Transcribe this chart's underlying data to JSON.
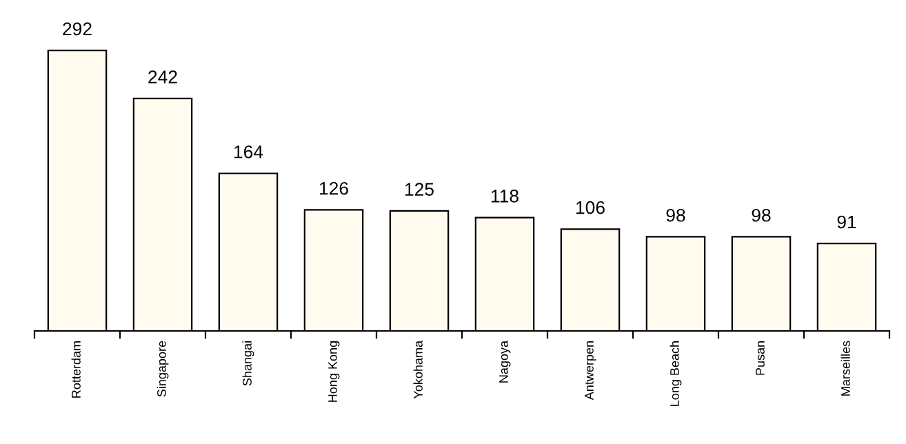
{
  "chart_data": {
    "type": "bar",
    "categories": [
      "Rotterdam",
      "Singapore",
      "Shangai",
      "Hong Kong",
      "Yokohama",
      "Nagoya",
      "Antwerpen",
      "Long Beach",
      "Pusan",
      "Marseilles"
    ],
    "values": [
      292,
      242,
      164,
      126,
      125,
      118,
      106,
      98,
      98,
      91
    ],
    "color": "#fffbef",
    "data_labels": true
  }
}
